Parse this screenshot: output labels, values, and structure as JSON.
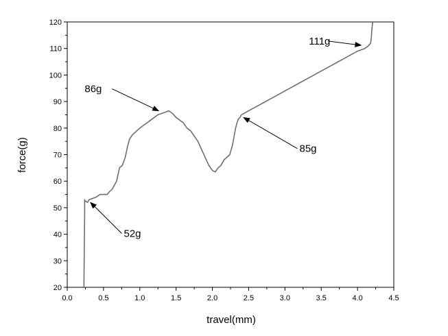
{
  "chart_data": {
    "type": "line",
    "xlabel": "travel(mm)",
    "ylabel": "force(g)",
    "xlim": [
      0.0,
      4.5
    ],
    "ylim": [
      20,
      120
    ],
    "grid": false,
    "xticks": [
      "0.0",
      "0.5",
      "1.0",
      "1.5",
      "2.0",
      "2.5",
      "3.0",
      "3.5",
      "4.0",
      "4.5"
    ],
    "yticks": [
      "20",
      "30",
      "40",
      "50",
      "60",
      "70",
      "80",
      "90",
      "100",
      "110",
      "120"
    ],
    "series": [
      {
        "color": "#6e6e6e",
        "x": [
          0.23,
          0.24,
          0.24,
          0.25,
          0.28,
          0.3,
          0.35,
          0.4,
          0.45,
          0.5,
          0.55,
          0.58,
          0.62,
          0.68,
          0.72,
          0.76,
          0.8,
          0.83,
          0.86,
          0.9,
          0.96,
          1.0,
          1.05,
          1.1,
          1.15,
          1.2,
          1.25,
          1.3,
          1.35,
          1.4,
          1.45,
          1.5,
          1.55,
          1.6,
          1.65,
          1.7,
          1.75,
          1.8,
          1.85,
          1.9,
          1.95,
          2.0,
          2.04,
          2.08,
          2.12,
          2.16,
          2.2,
          2.24,
          2.26,
          2.28,
          2.3,
          2.32,
          2.34,
          2.36,
          2.38,
          2.4,
          2.5,
          2.6,
          2.7,
          2.8,
          2.9,
          3.0,
          3.1,
          3.2,
          3.3,
          3.4,
          3.5,
          3.6,
          3.7,
          3.8,
          3.9,
          4.0,
          4.1,
          4.15,
          4.18,
          4.19,
          4.2,
          4.21
        ],
        "y": [
          20,
          48,
          53,
          52.5,
          52,
          53,
          53.5,
          54,
          55,
          55,
          55,
          56,
          57,
          60,
          65,
          66,
          69,
          73,
          76,
          77.5,
          79,
          80,
          81,
          82,
          83,
          84,
          85,
          85.5,
          86,
          86.5,
          85.5,
          84,
          83,
          82,
          80,
          79,
          77,
          75,
          72,
          69,
          66,
          64,
          63.5,
          65,
          66,
          68,
          69,
          70,
          72,
          74,
          77,
          80,
          82,
          83.5,
          84,
          85,
          86.5,
          88,
          89.5,
          91,
          92.5,
          94,
          95.5,
          97,
          98.5,
          100,
          101.5,
          103,
          104.5,
          106,
          107.5,
          109,
          110,
          111,
          112,
          114,
          118,
          121
        ]
      }
    ],
    "annotations": [
      {
        "text": "86g",
        "x": 0.24,
        "y": 93.5,
        "x_to": 1.26,
        "y_to": 86.5
      },
      {
        "text": "85g",
        "x": 3.2,
        "y": 71,
        "x_to": 2.43,
        "y_to": 84
      },
      {
        "text": "52g",
        "x": 0.78,
        "y": 39,
        "x_to": 0.32,
        "y_to": 52
      },
      {
        "text": "111g",
        "x": 3.33,
        "y": 111.5,
        "x_to": 4.05,
        "y_to": 111.2
      }
    ]
  }
}
